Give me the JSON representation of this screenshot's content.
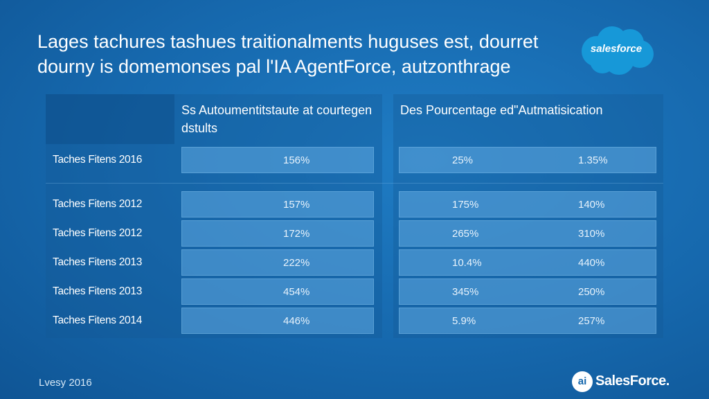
{
  "title_line1": "Lages tachures tashues traitionalments huguses est, dourret",
  "title_line2": "dourny is domemonses pal l'IA AgentForce, autzonthrage",
  "logo": {
    "wordmark": "salesforce",
    "color": "#1798d8"
  },
  "footer": {
    "left_text": "Lvesy 2016",
    "brand_mark": "ai",
    "brand_name": "SalesForce."
  },
  "chart_data": {
    "type": "table",
    "columns": [
      "Ss Autoumentitstaute at courtegen dstults",
      "Des Pourcentage ed\"Autmatisication"
    ],
    "rows": [
      {
        "label": "Taches Fitens 2016",
        "col1": "156%",
        "col2a": "25%",
        "col2b": "1.35%"
      },
      {
        "label": "Taches Fitens 2012",
        "col1": "157%",
        "col2a": "175%",
        "col2b": "140%"
      },
      {
        "label": "Taches Fitens 2012",
        "col1": "172%",
        "col2a": "265%",
        "col2b": "310%"
      },
      {
        "label": "Taches Fitens 2013",
        "col1": "222%",
        "col2a": "10.4%",
        "col2b": "440%"
      },
      {
        "label": "Taches Fitens 2013",
        "col1": "454%",
        "col2a": "345%",
        "col2b": "250%"
      },
      {
        "label": "Taches Fitens 2014",
        "col1": "446%",
        "col2a": "5.9%",
        "col2b": "257%"
      }
    ]
  }
}
